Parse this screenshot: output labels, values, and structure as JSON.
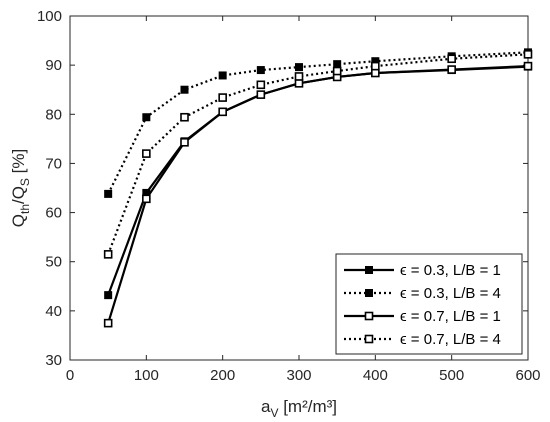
{
  "chart_data": {
    "type": "line",
    "title": "",
    "xlabel": {
      "main": "a",
      "sub": "V",
      "rest": " [m²/m³]"
    },
    "ylabel": {
      "part1": "Q",
      "sub1": "th",
      "part2": "/Q",
      "sub2": "S",
      "rest": " [%]"
    },
    "xlim": [
      0,
      600
    ],
    "ylim": [
      30,
      100
    ],
    "xticks": [
      0,
      100,
      200,
      300,
      400,
      500,
      600
    ],
    "yticks": [
      30,
      40,
      50,
      60,
      70,
      80,
      90,
      100
    ],
    "grid": false,
    "legend_position": "bottom-right",
    "x": [
      50,
      100,
      150,
      200,
      250,
      300,
      350,
      400,
      500,
      600
    ],
    "series": [
      {
        "name": "ϵ = 0.3, L/B = 1",
        "line": "solid",
        "marker": "filled-square",
        "values": [
          43.2,
          64.0,
          74.5,
          80.5,
          84.0,
          86.3,
          87.6,
          88.4,
          89.0,
          89.7
        ]
      },
      {
        "name": "ϵ = 0.3, L/B = 4",
        "line": "dotted",
        "marker": "filled-square",
        "values": [
          63.8,
          79.4,
          85.0,
          87.9,
          89.0,
          89.6,
          90.2,
          90.8,
          91.8,
          92.6
        ]
      },
      {
        "name": "ϵ = 0.7, L/B = 1",
        "line": "solid",
        "marker": "open-square",
        "values": [
          37.5,
          62.8,
          74.3,
          80.5,
          84.0,
          86.3,
          87.6,
          88.4,
          89.1,
          89.8
        ]
      },
      {
        "name": "ϵ = 0.7, L/B = 4",
        "line": "dotted",
        "marker": "open-square",
        "values": [
          51.5,
          72.0,
          79.4,
          83.4,
          86.0,
          87.7,
          88.8,
          89.8,
          91.3,
          92.2
        ]
      }
    ],
    "colors": {
      "line": "#000000",
      "axis": "#262626",
      "background": "#ffffff"
    }
  }
}
